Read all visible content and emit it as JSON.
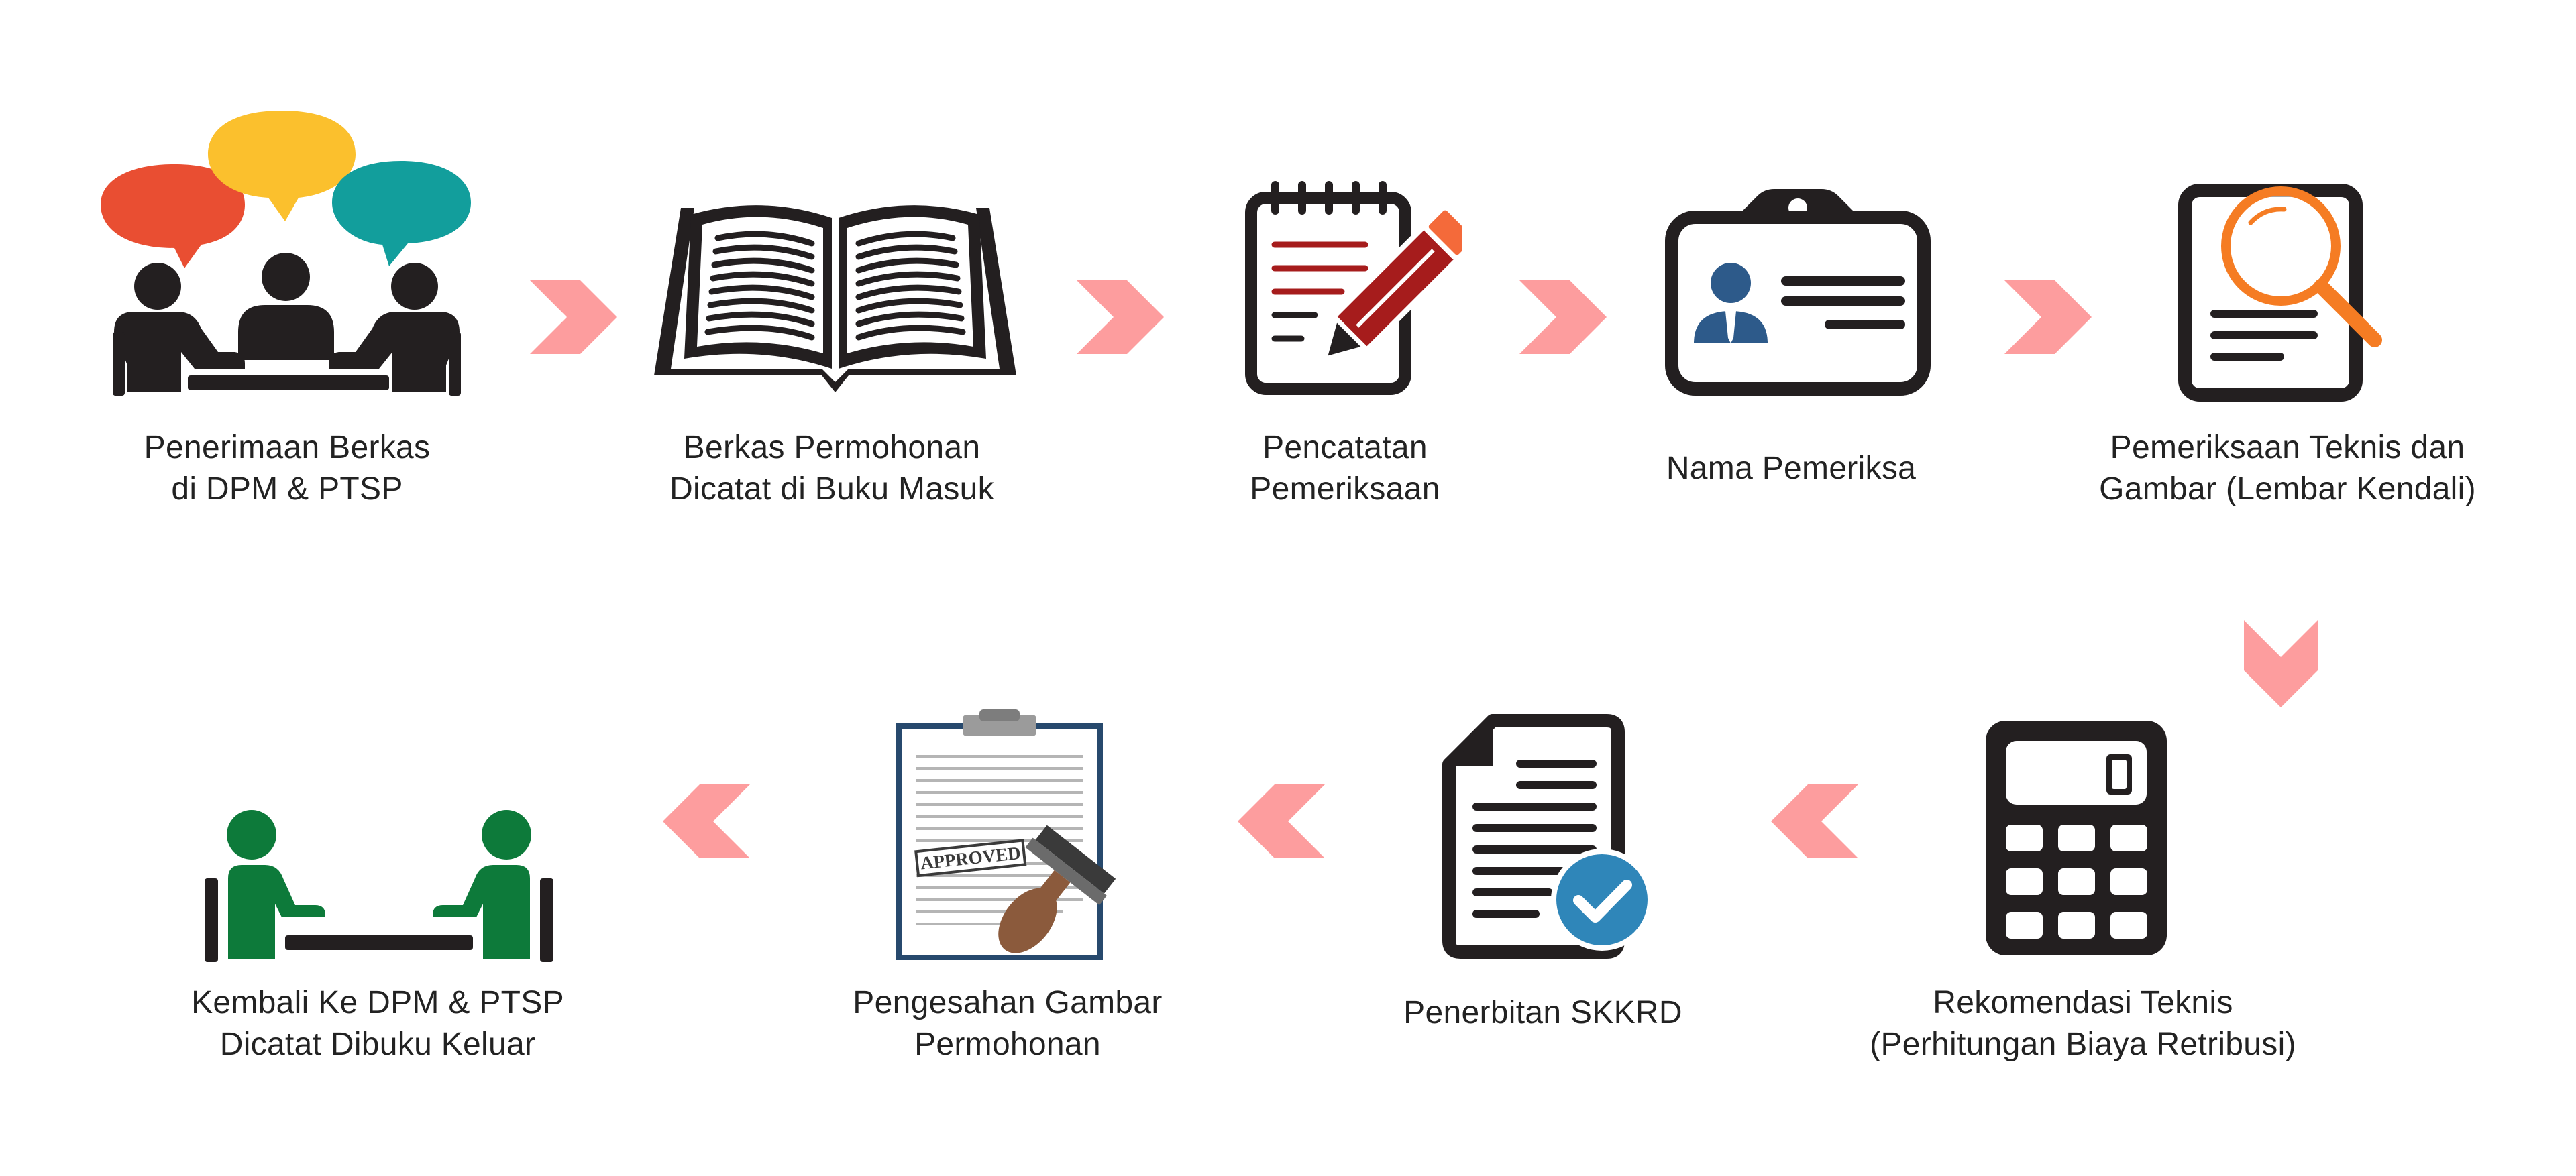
{
  "colors": {
    "arrow": "#fd9d9e",
    "dark": "#231f20",
    "bubble_red": "#e94e32",
    "bubble_yellow": "#fbc02d",
    "bubble_teal": "#129e9c",
    "pen_red": "#a61c1c",
    "pen_orange": "#f46a3a",
    "magnifier_orange": "#f57c23",
    "person_blue": "#2d5a8a",
    "check_blue": "#2f86b9",
    "green": "#0d7a3a",
    "stamp_brown": "#8b5a3c"
  },
  "steps": [
    {
      "id": "penerimaan",
      "icon": "meeting-icon",
      "lines": [
        "Penerimaan Berkas",
        "di DPM & PTSP"
      ]
    },
    {
      "id": "berkas",
      "icon": "open-book-icon",
      "lines": [
        "Berkas Permohonan",
        "Dicatat di Buku Masuk"
      ]
    },
    {
      "id": "pencatatan",
      "icon": "notepad-pencil-icon",
      "lines": [
        "Pencatatan",
        "Pemeriksaan"
      ]
    },
    {
      "id": "nama",
      "icon": "id-card-icon",
      "lines": [
        "Nama Pemeriksa"
      ]
    },
    {
      "id": "pemeriksaan",
      "icon": "document-magnifier-icon",
      "lines": [
        "Pemeriksaan Teknis dan",
        "Gambar (Lembar Kendali)"
      ]
    },
    {
      "id": "rekomendasi",
      "icon": "calculator-icon",
      "lines": [
        "Rekomendasi Teknis",
        "(Perhitungan Biaya Retribusi)"
      ]
    },
    {
      "id": "penerbitan",
      "icon": "document-check-icon",
      "lines": [
        "Penerbitan SKKRD"
      ]
    },
    {
      "id": "pengesahan",
      "icon": "approved-clipboard-icon",
      "stamp_text": "APPROVED",
      "lines": [
        "Pengesahan Gambar",
        "Permohonan"
      ]
    },
    {
      "id": "kembali",
      "icon": "handover-icon",
      "lines": [
        "Kembali Ke DPM & PTSP",
        "Dicatat Dibuku Keluar"
      ]
    }
  ],
  "arrows": [
    {
      "from": "penerimaan",
      "to": "berkas",
      "direction": "right"
    },
    {
      "from": "berkas",
      "to": "pencatatan",
      "direction": "right"
    },
    {
      "from": "pencatatan",
      "to": "nama",
      "direction": "right"
    },
    {
      "from": "nama",
      "to": "pemeriksaan",
      "direction": "right"
    },
    {
      "from": "pemeriksaan",
      "to": "rekomendasi",
      "direction": "down"
    },
    {
      "from": "rekomendasi",
      "to": "penerbitan",
      "direction": "left"
    },
    {
      "from": "penerbitan",
      "to": "pengesahan",
      "direction": "left"
    },
    {
      "from": "pengesahan",
      "to": "kembali",
      "direction": "left"
    }
  ]
}
